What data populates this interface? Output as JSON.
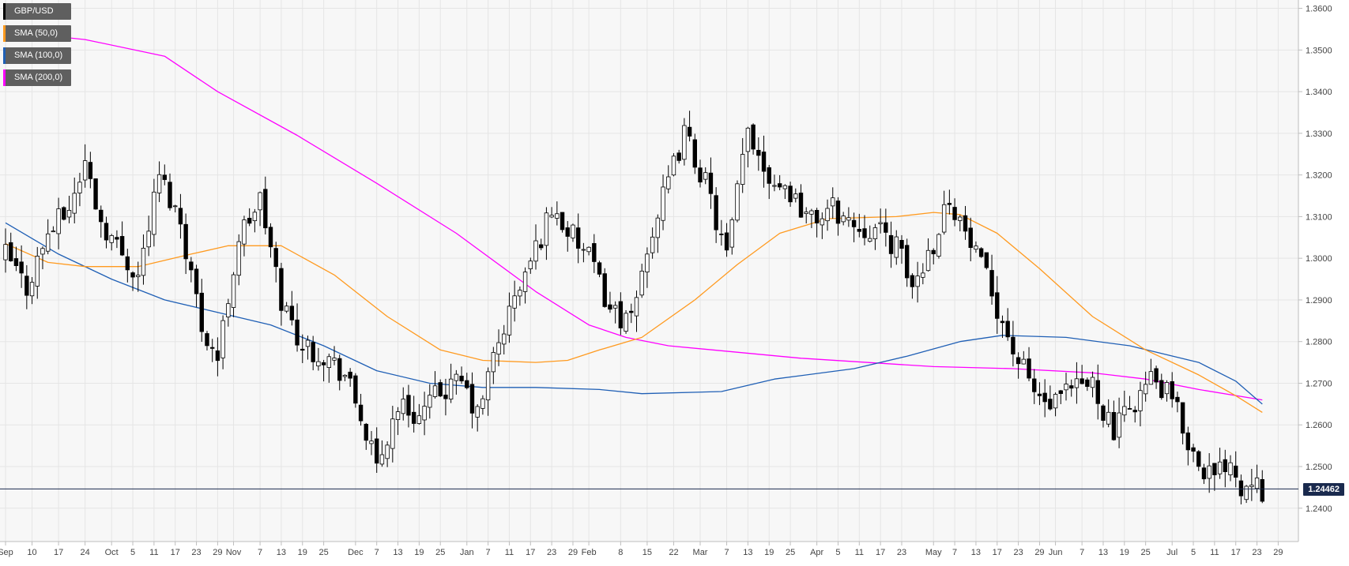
{
  "chart_data": {
    "type": "candlestick",
    "symbol": "GBP/USD",
    "timeframe": "daily",
    "ylim": [
      1.232,
      1.362
    ],
    "y_ticks": [
      "1.2400",
      "1.2500",
      "1.2600",
      "1.2700",
      "1.2800",
      "1.2900",
      "1.3000",
      "1.3100",
      "1.3200",
      "1.3300",
      "1.3400",
      "1.3500",
      "1.3600"
    ],
    "x_ticks": [
      {
        "label": "Sep",
        "bar": 0
      },
      {
        "label": "10",
        "bar": 5
      },
      {
        "label": "17",
        "bar": 10
      },
      {
        "label": "24",
        "bar": 15
      },
      {
        "label": "Oct",
        "bar": 20
      },
      {
        "label": "5",
        "bar": 24
      },
      {
        "label": "11",
        "bar": 28
      },
      {
        "label": "17",
        "bar": 32
      },
      {
        "label": "23",
        "bar": 36
      },
      {
        "label": "29",
        "bar": 40
      },
      {
        "label": "Nov",
        "bar": 43
      },
      {
        "label": "7",
        "bar": 48
      },
      {
        "label": "13",
        "bar": 52
      },
      {
        "label": "19",
        "bar": 56
      },
      {
        "label": "25",
        "bar": 60
      },
      {
        "label": "Dec",
        "bar": 66
      },
      {
        "label": "7",
        "bar": 70
      },
      {
        "label": "13",
        "bar": 74
      },
      {
        "label": "19",
        "bar": 78
      },
      {
        "label": "25",
        "bar": 82
      },
      {
        "label": "Jan",
        "bar": 87
      },
      {
        "label": "7",
        "bar": 91
      },
      {
        "label": "11",
        "bar": 95
      },
      {
        "label": "17",
        "bar": 99
      },
      {
        "label": "23",
        "bar": 103
      },
      {
        "label": "29",
        "bar": 107
      },
      {
        "label": "Feb",
        "bar": 110
      },
      {
        "label": "8",
        "bar": 116
      },
      {
        "label": "15",
        "bar": 121
      },
      {
        "label": "22",
        "bar": 126
      },
      {
        "label": "Mar",
        "bar": 131
      },
      {
        "label": "7",
        "bar": 136
      },
      {
        "label": "13",
        "bar": 140
      },
      {
        "label": "19",
        "bar": 144
      },
      {
        "label": "25",
        "bar": 148
      },
      {
        "label": "Apr",
        "bar": 153
      },
      {
        "label": "5",
        "bar": 157
      },
      {
        "label": "11",
        "bar": 161
      },
      {
        "label": "17",
        "bar": 165
      },
      {
        "label": "23",
        "bar": 169
      },
      {
        "label": "May",
        "bar": 175
      },
      {
        "label": "7",
        "bar": 179
      },
      {
        "label": "13",
        "bar": 183
      },
      {
        "label": "17",
        "bar": 187
      },
      {
        "label": "23",
        "bar": 191
      },
      {
        "label": "29",
        "bar": 195
      },
      {
        "label": "Jun",
        "bar": 198
      },
      {
        "label": "7",
        "bar": 203
      },
      {
        "label": "13",
        "bar": 207
      },
      {
        "label": "19",
        "bar": 211
      },
      {
        "label": "25",
        "bar": 215
      },
      {
        "label": "Jul",
        "bar": 220
      },
      {
        "label": "5",
        "bar": 224
      },
      {
        "label": "11",
        "bar": 228
      },
      {
        "label": "17",
        "bar": 232
      },
      {
        "label": "23",
        "bar": 236
      },
      {
        "label": "29",
        "bar": 240
      }
    ],
    "current_price": 1.24462,
    "current_price_label": "1.24462",
    "series": [
      {
        "name": "GBP/USD",
        "type": "candles",
        "candle_up_color": "#ffffff",
        "candle_down_color": "#000000",
        "legend_swatch": "#000000"
      },
      {
        "name": "SMA (50,0)",
        "color": "#ff9a1f"
      },
      {
        "name": "SMA (100,0)",
        "color": "#1f5fb5"
      },
      {
        "name": "SMA (200,0)",
        "color": "#ff00ff"
      }
    ],
    "sma_200": [
      [
        0,
        1.3545
      ],
      [
        15,
        1.3525
      ],
      [
        30,
        1.3485
      ],
      [
        40,
        1.34
      ],
      [
        55,
        1.3295
      ],
      [
        70,
        1.318
      ],
      [
        85,
        1.306
      ],
      [
        100,
        1.292
      ],
      [
        110,
        1.284
      ],
      [
        117,
        1.281
      ],
      [
        125,
        1.279
      ],
      [
        150,
        1.276
      ],
      [
        175,
        1.274
      ],
      [
        190,
        1.2735
      ],
      [
        205,
        1.2725
      ],
      [
        215,
        1.271
      ],
      [
        225,
        1.2685
      ],
      [
        237,
        1.266
      ]
    ],
    "sma_100": [
      [
        0,
        1.3085
      ],
      [
        10,
        1.301
      ],
      [
        20,
        1.295
      ],
      [
        30,
        1.29
      ],
      [
        40,
        1.287
      ],
      [
        50,
        1.284
      ],
      [
        60,
        1.279
      ],
      [
        70,
        1.273
      ],
      [
        80,
        1.27
      ],
      [
        90,
        1.269
      ],
      [
        100,
        1.269
      ],
      [
        112,
        1.2685
      ],
      [
        120,
        1.2675
      ],
      [
        135,
        1.268
      ],
      [
        145,
        1.271
      ],
      [
        160,
        1.2735
      ],
      [
        170,
        1.2765
      ],
      [
        180,
        1.28
      ],
      [
        188,
        1.2815
      ],
      [
        200,
        1.281
      ],
      [
        212,
        1.279
      ],
      [
        225,
        1.275
      ],
      [
        232,
        1.2705
      ],
      [
        237,
        1.265
      ]
    ],
    "sma_50": [
      [
        0,
        1.3035
      ],
      [
        8,
        1.299
      ],
      [
        15,
        1.298
      ],
      [
        25,
        1.298
      ],
      [
        35,
        1.301
      ],
      [
        42,
        1.303
      ],
      [
        52,
        1.303
      ],
      [
        62,
        1.296
      ],
      [
        72,
        1.286
      ],
      [
        82,
        1.278
      ],
      [
        90,
        1.2755
      ],
      [
        100,
        1.275
      ],
      [
        106,
        1.2755
      ],
      [
        112,
        1.278
      ],
      [
        120,
        1.281
      ],
      [
        130,
        1.29
      ],
      [
        138,
        1.2985
      ],
      [
        146,
        1.306
      ],
      [
        155,
        1.3095
      ],
      [
        168,
        1.31
      ],
      [
        175,
        1.311
      ],
      [
        180,
        1.3105
      ],
      [
        187,
        1.306
      ],
      [
        195,
        1.2975
      ],
      [
        205,
        1.286
      ],
      [
        215,
        1.278
      ],
      [
        225,
        1.272
      ],
      [
        232,
        1.267
      ],
      [
        237,
        1.263
      ]
    ]
  },
  "legend": [
    "GBP/USD",
    "SMA (50,0)",
    "SMA (100,0)",
    "SMA (200,0)"
  ]
}
